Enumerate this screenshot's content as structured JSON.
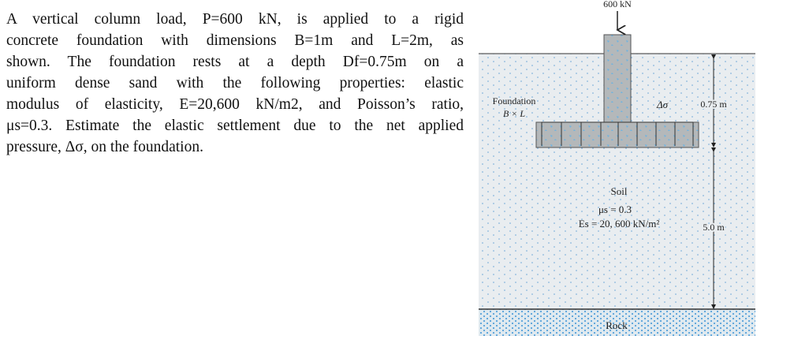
{
  "problem": {
    "lines": [
      "A vertical column load, P=600 kN, is applied to a rigid",
      "concrete foundation with dimensions B=1m and L=2m, as",
      "shown. The foundation rests at a depth Df=0.75m on a",
      "uniform dense sand with the following properties: elastic",
      "modulus of elasticity, E=20,600 kN/m2, and Poisson’s ratio,",
      "μs=0.3. Estimate the elastic settlement due to the net applied",
      "pressure, Δσ, on the foundation."
    ]
  },
  "diagram": {
    "load": "600 kN",
    "foundation": "Foundation",
    "dimensions": "B × L",
    "pressure": "Δσ",
    "depth": "0.75 m",
    "soil": "Soil",
    "poisson": "μs = 0.3",
    "modulus": "Es = 20, 600 kN/m²",
    "thickness": "5.0 m",
    "rock": "Rock"
  }
}
